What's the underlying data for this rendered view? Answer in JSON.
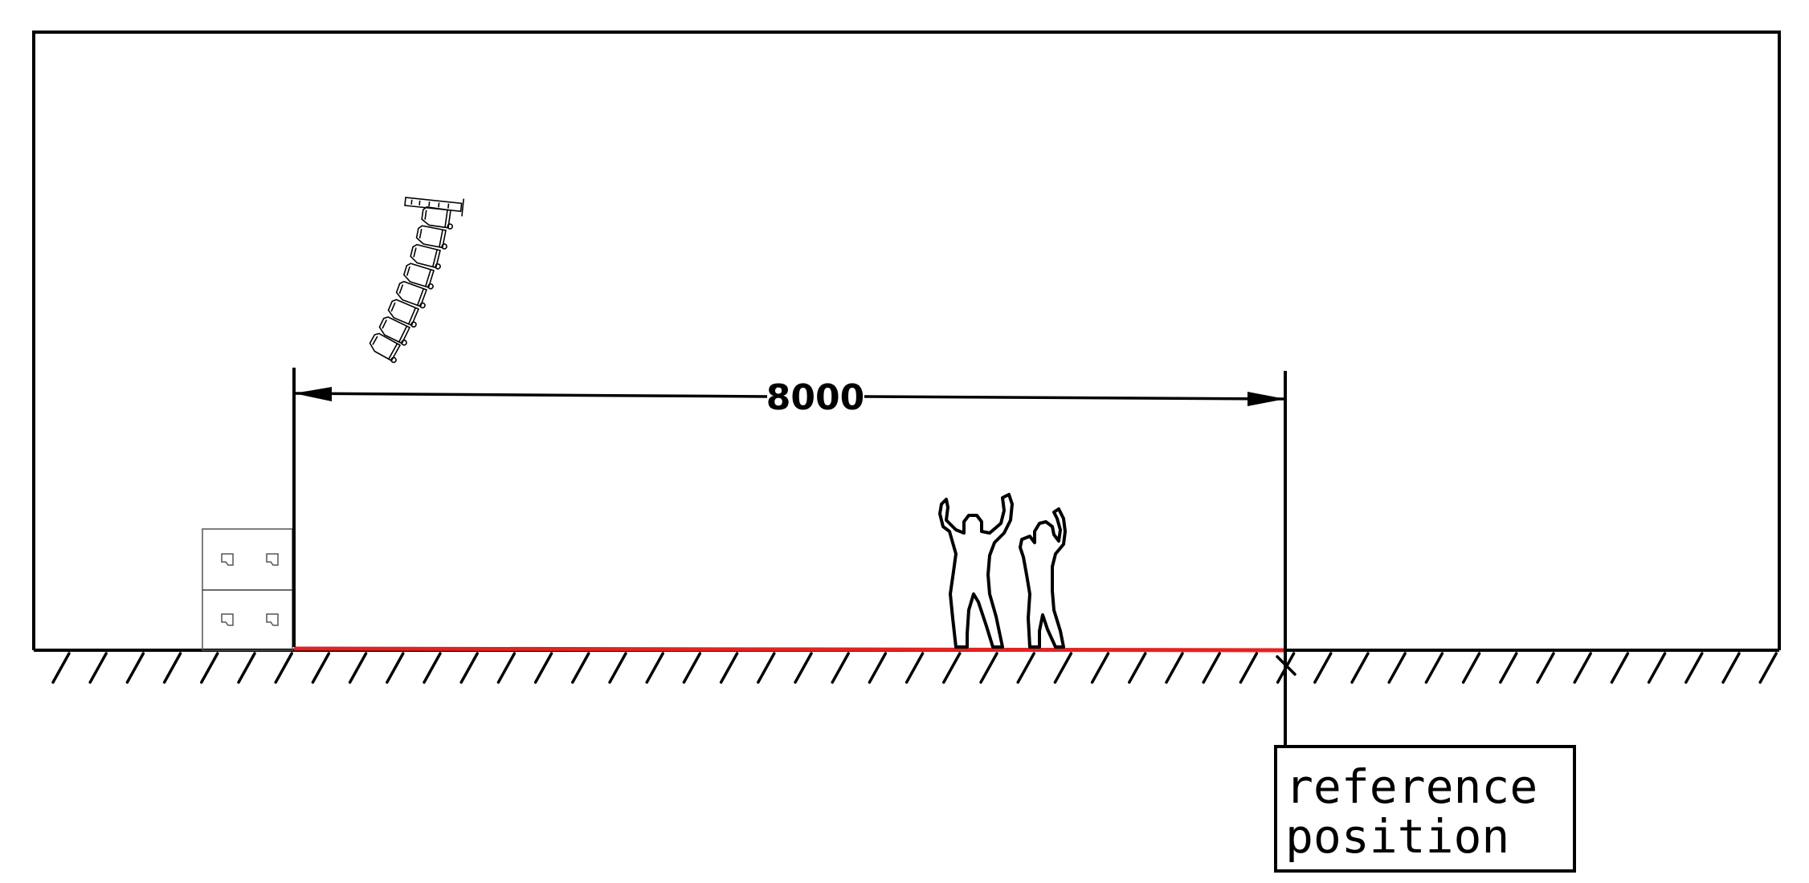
{
  "dimension": {
    "label": "8000"
  },
  "reference_box": {
    "line1": "reference",
    "line2": "position"
  },
  "colors": {
    "ink": "#000000",
    "floor_highlight": "#e32222",
    "sub_outline": "#555555"
  },
  "icons": {
    "line_array": "line-array-speaker-icon",
    "subwoofer": "subwoofer-stack-icon",
    "audience": "audience-silhouette-icon",
    "ground": "ground-hatch-icon"
  }
}
